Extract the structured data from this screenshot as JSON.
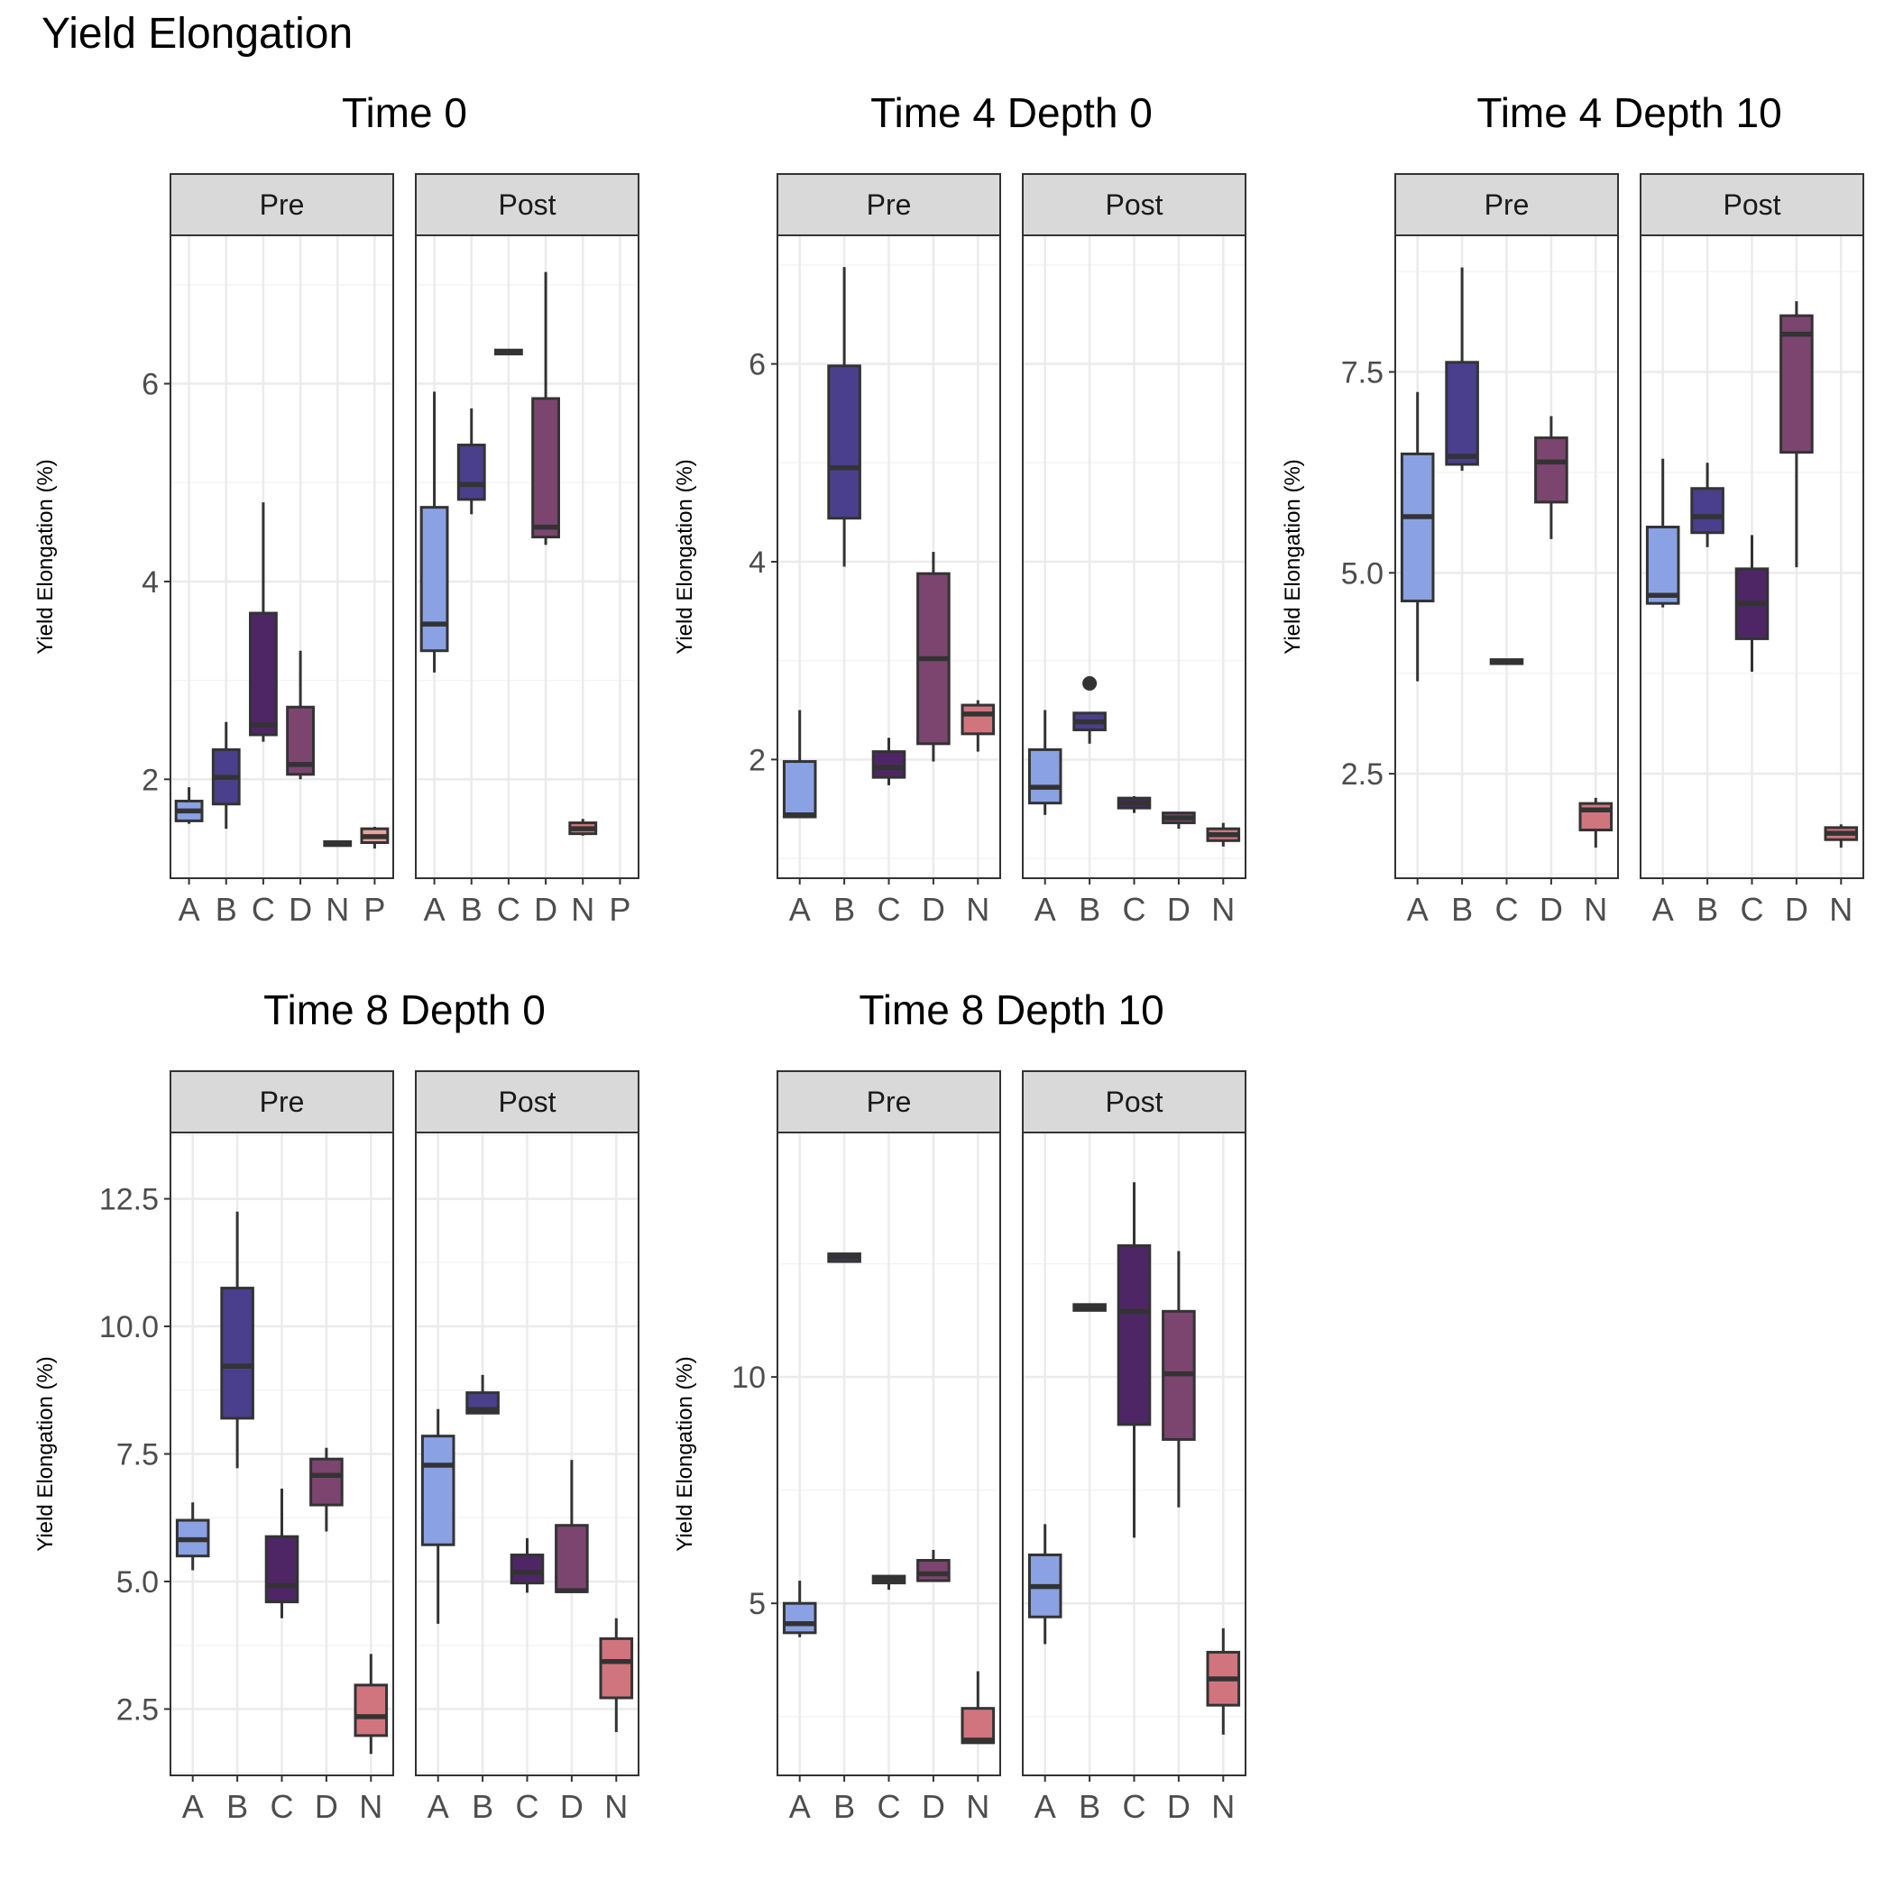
{
  "title": "Yield Elongation",
  "colors": {
    "A": "#8aa2e3",
    "B": "#4a3f8c",
    "C": "#4e2665",
    "D": "#7c4570",
    "N": "#d0757e",
    "P": "#e8a49c",
    "panel_border": "#333333",
    "strip_fill": "#d9d9d9",
    "grid_major": "#ebebeb",
    "grid_minor": "#f4f4f4",
    "box_line": "#333333"
  },
  "chart_data": [
    {
      "type": "boxplot",
      "title": "Time 0",
      "ylabel": "Yield Elongation (%)",
      "ylim": [
        1.0,
        7.5
      ],
      "yticks": [
        2,
        4,
        6
      ],
      "ytick_labels": [
        "2",
        "4",
        "6"
      ],
      "categories": [
        "A",
        "B",
        "C",
        "D",
        "N",
        "P"
      ],
      "facets": [
        {
          "name": "Pre",
          "boxes": [
            {
              "cat": "A",
              "min": 1.55,
              "q1": 1.58,
              "median": 1.68,
              "q3": 1.78,
              "max": 1.92
            },
            {
              "cat": "B",
              "min": 1.5,
              "q1": 1.75,
              "median": 2.02,
              "q3": 2.3,
              "max": 2.58
            },
            {
              "cat": "C",
              "min": 2.38,
              "q1": 2.45,
              "median": 2.55,
              "q3": 3.68,
              "max": 4.8
            },
            {
              "cat": "D",
              "min": 2.0,
              "q1": 2.05,
              "median": 2.15,
              "q3": 2.73,
              "max": 3.3
            },
            {
              "cat": "N",
              "min": 1.33,
              "q1": 1.33,
              "median": 1.35,
              "q3": 1.37,
              "max": 1.37
            },
            {
              "cat": "P",
              "min": 1.3,
              "q1": 1.36,
              "median": 1.42,
              "q3": 1.5,
              "max": 1.52
            }
          ]
        },
        {
          "name": "Post",
          "boxes": [
            {
              "cat": "A",
              "min": 3.08,
              "q1": 3.3,
              "median": 3.57,
              "q3": 4.75,
              "max": 5.92
            },
            {
              "cat": "B",
              "min": 4.68,
              "q1": 4.83,
              "median": 4.98,
              "q3": 5.38,
              "max": 5.75
            },
            {
              "cat": "C",
              "min": 6.3,
              "q1": 6.3,
              "median": 6.32,
              "q3": 6.34,
              "max": 6.34
            },
            {
              "cat": "D",
              "min": 4.37,
              "q1": 4.45,
              "median": 4.55,
              "q3": 5.85,
              "max": 7.13
            },
            {
              "cat": "N",
              "min": 1.43,
              "q1": 1.45,
              "median": 1.5,
              "q3": 1.56,
              "max": 1.6
            }
          ]
        }
      ]
    },
    {
      "type": "boxplot",
      "title": "Time 4 Depth 0",
      "ylabel": "Yield Elongation (%)",
      "ylim": [
        0.8,
        7.3
      ],
      "yticks": [
        2,
        4,
        6
      ],
      "ytick_labels": [
        "2",
        "4",
        "6"
      ],
      "categories": [
        "A",
        "B",
        "C",
        "D",
        "N"
      ],
      "facets": [
        {
          "name": "Pre",
          "boxes": [
            {
              "cat": "A",
              "min": 1.42,
              "q1": 1.42,
              "median": 1.44,
              "q3": 1.98,
              "max": 2.5
            },
            {
              "cat": "B",
              "min": 3.95,
              "q1": 4.44,
              "median": 4.95,
              "q3": 5.98,
              "max": 6.98
            },
            {
              "cat": "C",
              "min": 1.74,
              "q1": 1.82,
              "median": 1.92,
              "q3": 2.08,
              "max": 2.22
            },
            {
              "cat": "D",
              "min": 1.98,
              "q1": 2.16,
              "median": 3.02,
              "q3": 3.88,
              "max": 4.1
            },
            {
              "cat": "N",
              "min": 2.08,
              "q1": 2.26,
              "median": 2.46,
              "q3": 2.55,
              "max": 2.6
            }
          ]
        },
        {
          "name": "Post",
          "boxes": [
            {
              "cat": "A",
              "min": 1.44,
              "q1": 1.56,
              "median": 1.72,
              "q3": 2.1,
              "max": 2.5
            },
            {
              "cat": "B",
              "min": 2.16,
              "q1": 2.3,
              "median": 2.38,
              "q3": 2.47,
              "max": 2.47,
              "outliers": [
                2.77
              ]
            },
            {
              "cat": "C",
              "min": 1.46,
              "q1": 1.51,
              "median": 1.56,
              "q3": 1.61,
              "max": 1.63
            },
            {
              "cat": "D",
              "min": 1.3,
              "q1": 1.36,
              "median": 1.41,
              "q3": 1.46,
              "max": 1.46
            },
            {
              "cat": "N",
              "min": 1.12,
              "q1": 1.18,
              "median": 1.24,
              "q3": 1.3,
              "max": 1.36
            }
          ]
        }
      ]
    },
    {
      "type": "boxplot",
      "title": "Time 4 Depth 10",
      "ylabel": "Yield Elongation (%)",
      "ylim": [
        1.2,
        9.2
      ],
      "yticks": [
        2.5,
        5.0,
        7.5
      ],
      "ytick_labels": [
        "2.5",
        "5.0",
        "7.5"
      ],
      "categories": [
        "A",
        "B",
        "C",
        "D",
        "N"
      ],
      "facets": [
        {
          "name": "Pre",
          "boxes": [
            {
              "cat": "A",
              "min": 3.65,
              "q1": 4.65,
              "median": 5.7,
              "q3": 6.48,
              "max": 7.25
            },
            {
              "cat": "B",
              "min": 6.27,
              "q1": 6.35,
              "median": 6.45,
              "q3": 7.62,
              "max": 8.8
            },
            {
              "cat": "C",
              "min": 3.87,
              "q1": 3.87,
              "median": 3.9,
              "q3": 3.92,
              "max": 3.92
            },
            {
              "cat": "D",
              "min": 5.42,
              "q1": 5.88,
              "median": 6.38,
              "q3": 6.68,
              "max": 6.95
            },
            {
              "cat": "N",
              "min": 1.58,
              "q1": 1.8,
              "median": 2.05,
              "q3": 2.13,
              "max": 2.2
            }
          ]
        },
        {
          "name": "Post",
          "boxes": [
            {
              "cat": "A",
              "min": 4.57,
              "q1": 4.62,
              "median": 4.72,
              "q3": 5.57,
              "max": 6.42
            },
            {
              "cat": "B",
              "min": 5.32,
              "q1": 5.5,
              "median": 5.7,
              "q3": 6.05,
              "max": 6.37
            },
            {
              "cat": "C",
              "min": 3.77,
              "q1": 4.18,
              "median": 4.62,
              "q3": 5.05,
              "max": 5.47
            },
            {
              "cat": "D",
              "min": 5.07,
              "q1": 6.5,
              "median": 7.97,
              "q3": 8.2,
              "max": 8.38
            },
            {
              "cat": "N",
              "min": 1.58,
              "q1": 1.68,
              "median": 1.76,
              "q3": 1.83,
              "max": 1.87
            }
          ]
        }
      ]
    },
    {
      "type": "boxplot",
      "title": "Time 8 Depth 0",
      "ylabel": "Yield Elongation (%)",
      "ylim": [
        1.2,
        13.8
      ],
      "yticks": [
        2.5,
        5.0,
        7.5,
        10.0,
        12.5
      ],
      "ytick_labels": [
        "2.5",
        "5.0",
        "7.5",
        "10.0",
        "12.5"
      ],
      "categories": [
        "A",
        "B",
        "C",
        "D",
        "N"
      ],
      "facets": [
        {
          "name": "Pre",
          "boxes": [
            {
              "cat": "A",
              "min": 5.22,
              "q1": 5.5,
              "median": 5.82,
              "q3": 6.2,
              "max": 6.55
            },
            {
              "cat": "B",
              "min": 7.22,
              "q1": 8.2,
              "median": 9.22,
              "q3": 10.75,
              "max": 12.25
            },
            {
              "cat": "C",
              "min": 4.28,
              "q1": 4.6,
              "median": 4.92,
              "q3": 5.88,
              "max": 6.82
            },
            {
              "cat": "D",
              "min": 5.98,
              "q1": 6.5,
              "median": 7.08,
              "q3": 7.4,
              "max": 7.62
            },
            {
              "cat": "N",
              "min": 1.62,
              "q1": 1.98,
              "median": 2.35,
              "q3": 2.97,
              "max": 3.58
            }
          ]
        },
        {
          "name": "Post",
          "boxes": [
            {
              "cat": "A",
              "min": 4.17,
              "q1": 5.72,
              "median": 7.28,
              "q3": 7.85,
              "max": 8.38
            },
            {
              "cat": "B",
              "min": 8.3,
              "q1": 8.3,
              "median": 8.37,
              "q3": 8.7,
              "max": 9.05
            },
            {
              "cat": "C",
              "min": 4.78,
              "q1": 4.97,
              "median": 5.18,
              "q3": 5.52,
              "max": 5.85
            },
            {
              "cat": "D",
              "min": 4.8,
              "q1": 4.8,
              "median": 4.82,
              "q3": 6.1,
              "max": 7.38
            },
            {
              "cat": "N",
              "min": 2.05,
              "q1": 2.72,
              "median": 3.43,
              "q3": 3.88,
              "max": 4.28
            }
          ]
        }
      ]
    },
    {
      "type": "boxplot",
      "title": "Time 8 Depth 10",
      "ylabel": "Yield Elongation (%)",
      "ylim": [
        1.2,
        15.4
      ],
      "yticks": [
        5,
        10
      ],
      "ytick_labels": [
        "5",
        "10"
      ],
      "categories": [
        "A",
        "B",
        "C",
        "D",
        "N"
      ],
      "facets": [
        {
          "name": "Pre",
          "boxes": [
            {
              "cat": "A",
              "min": 4.25,
              "q1": 4.35,
              "median": 4.55,
              "q3": 5.0,
              "max": 5.5
            },
            {
              "cat": "B",
              "min": 12.55,
              "q1": 12.55,
              "median": 12.65,
              "q3": 12.72,
              "max": 12.72
            },
            {
              "cat": "C",
              "min": 5.3,
              "q1": 5.45,
              "median": 5.52,
              "q3": 5.6,
              "max": 5.6
            },
            {
              "cat": "D",
              "min": 5.5,
              "q1": 5.5,
              "median": 5.65,
              "q3": 5.95,
              "max": 6.18
            },
            {
              "cat": "N",
              "min": 1.92,
              "q1": 1.92,
              "median": 1.98,
              "q3": 2.68,
              "max": 3.5
            }
          ]
        },
        {
          "name": "Post",
          "boxes": [
            {
              "cat": "A",
              "min": 4.1,
              "q1": 4.7,
              "median": 5.37,
              "q3": 6.07,
              "max": 6.75
            },
            {
              "cat": "B",
              "min": 11.47,
              "q1": 11.47,
              "median": 11.55,
              "q3": 11.6,
              "max": 11.6
            },
            {
              "cat": "C",
              "min": 6.45,
              "q1": 8.95,
              "median": 11.45,
              "q3": 12.9,
              "max": 14.3
            },
            {
              "cat": "D",
              "min": 7.12,
              "q1": 8.62,
              "median": 10.07,
              "q3": 11.45,
              "max": 12.78
            },
            {
              "cat": "N",
              "min": 2.1,
              "q1": 2.75,
              "median": 3.33,
              "q3": 3.92,
              "max": 4.45
            }
          ]
        }
      ]
    }
  ]
}
